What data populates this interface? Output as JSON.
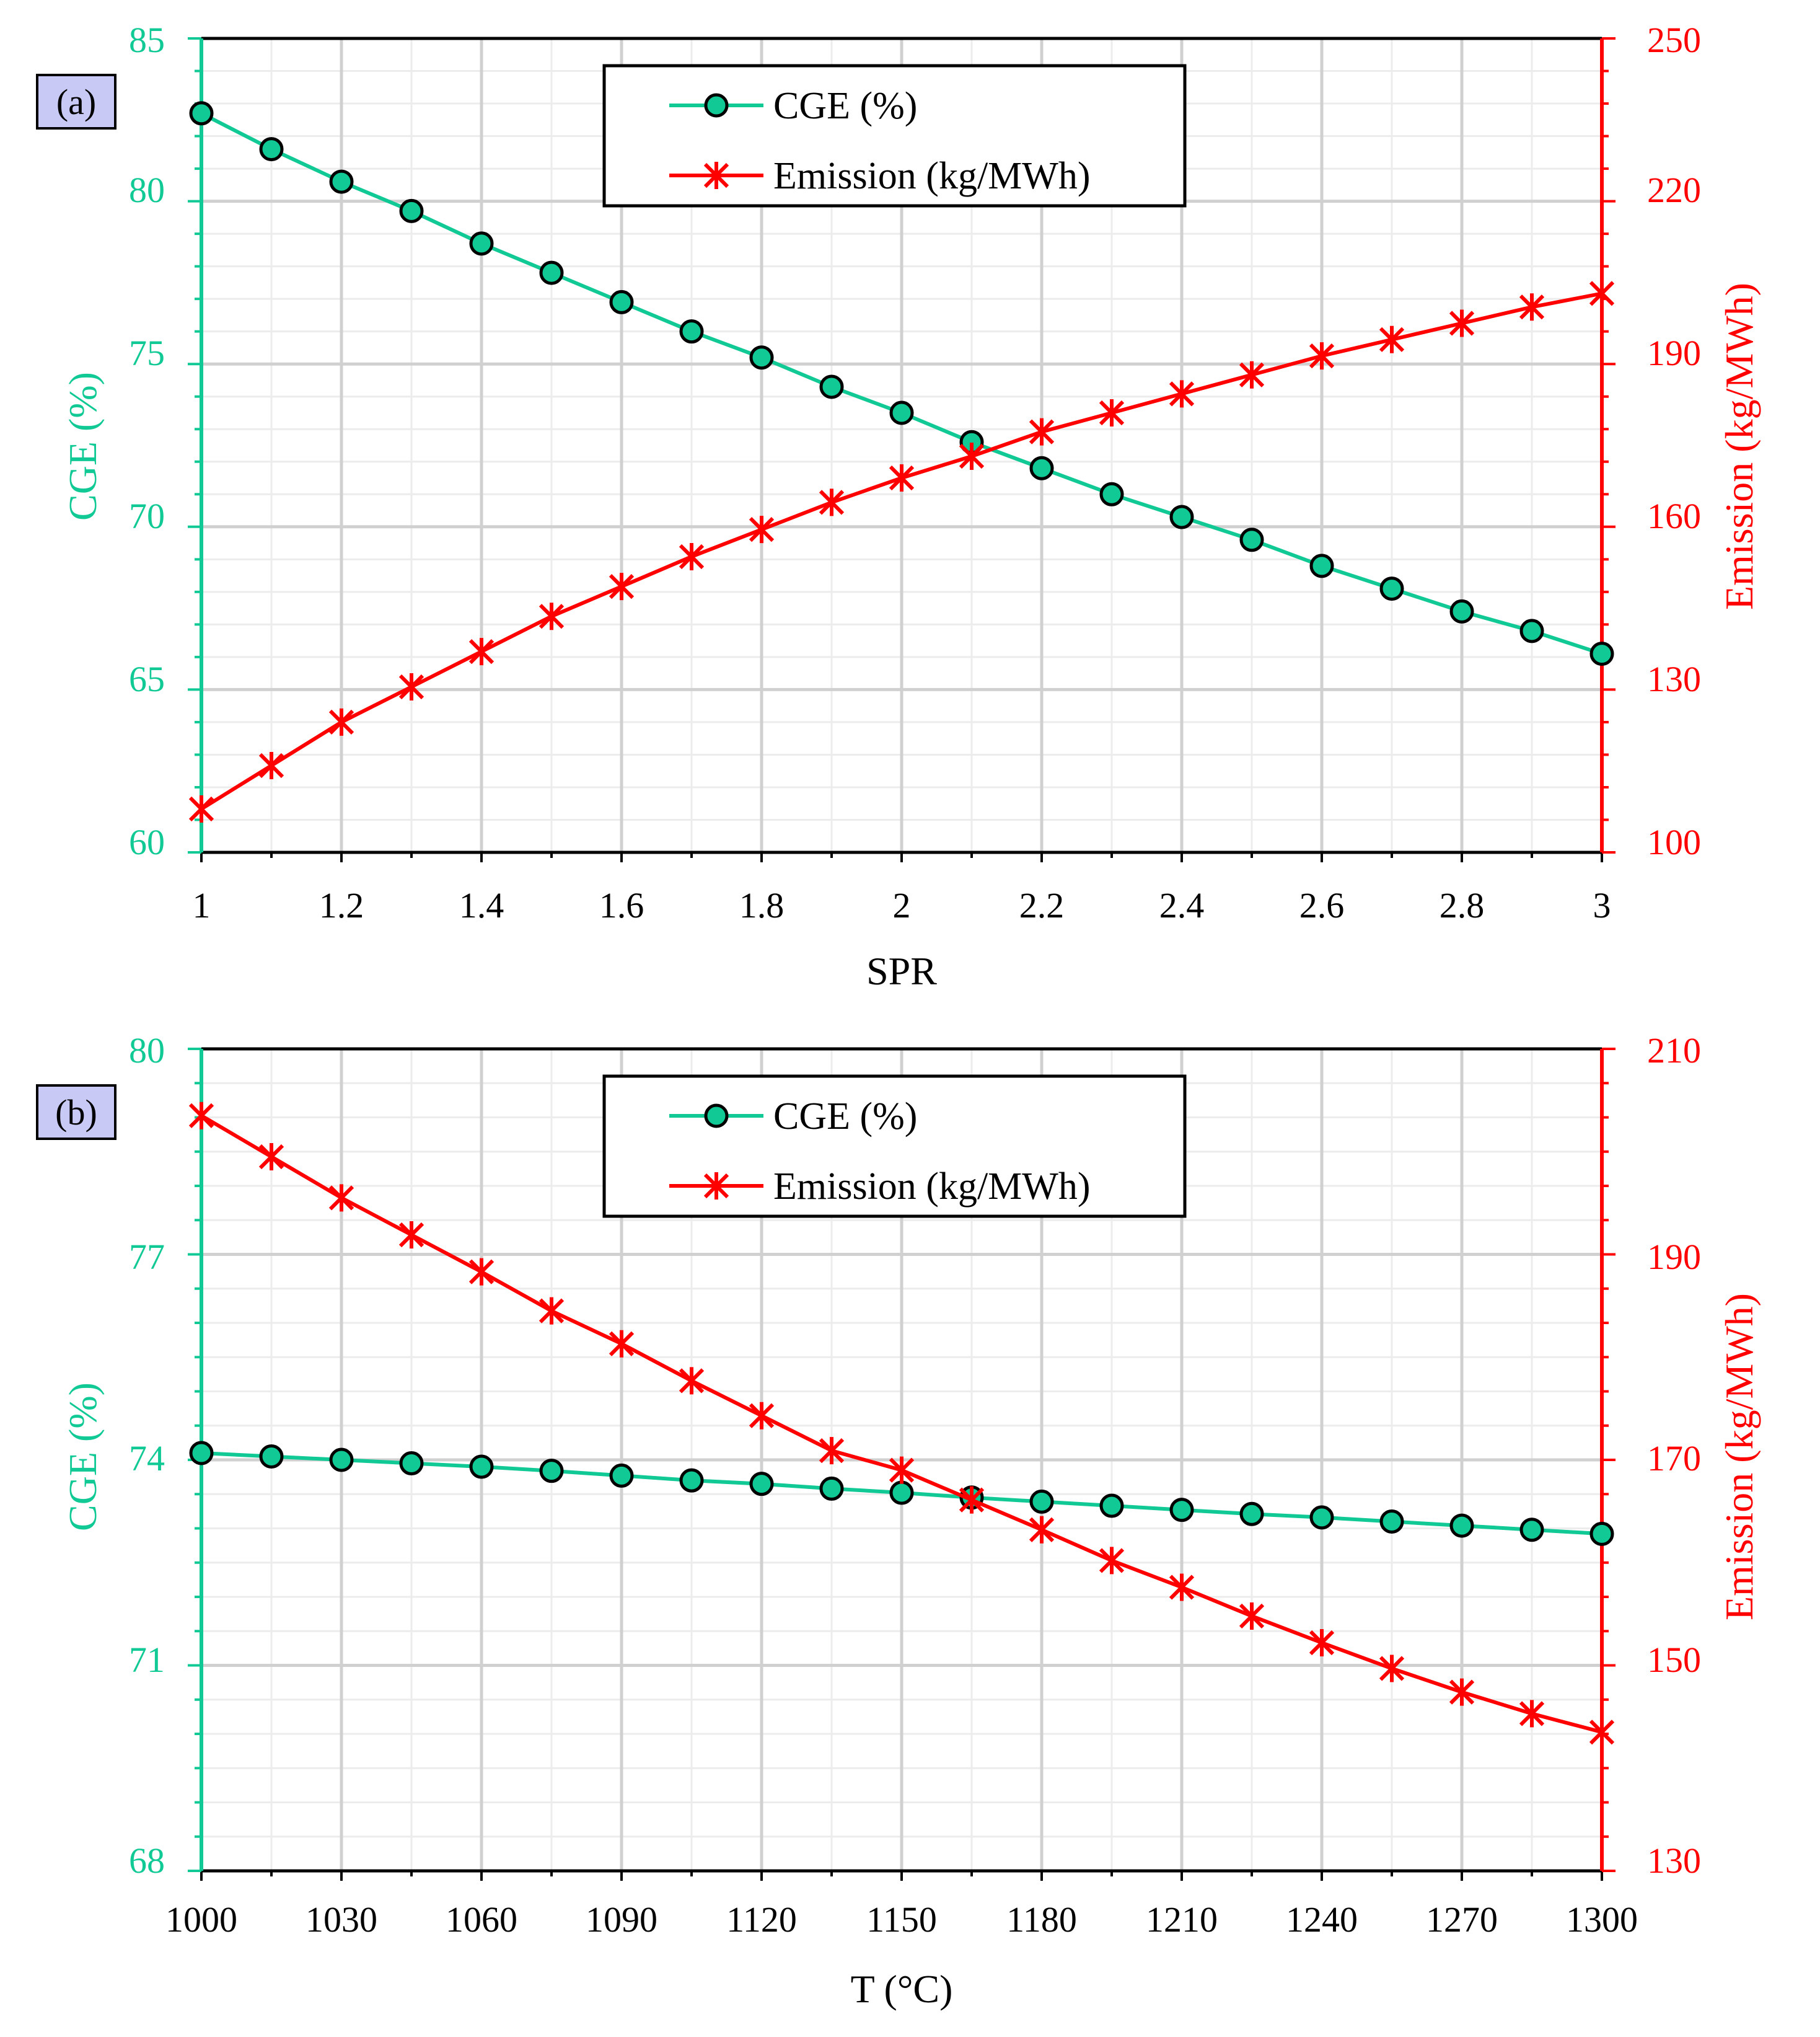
{
  "colors": {
    "cge": "#11c995",
    "emission": "#ff0000",
    "grid_major": "#d0d0d0",
    "grid_minor": "#ececec",
    "tag_fill": "#c9c9f5"
  },
  "chart_data": [
    {
      "id": "a",
      "type": "line",
      "panel_label": "(a)",
      "xlabel": "SPR",
      "ylabel_left": "CGE  (%)",
      "ylabel_right": "Emission  (kg/MWh)",
      "xlim": [
        1,
        3
      ],
      "ylim_left": [
        60,
        85
      ],
      "ylim_right": [
        100,
        250
      ],
      "x_ticks": [
        "1",
        "1.2",
        "1.4",
        "1.6",
        "1.8",
        "2",
        "2.2",
        "2.4",
        "2.6",
        "2.8",
        "3"
      ],
      "y_left_ticks": [
        "60",
        "65",
        "70",
        "75",
        "80",
        "85"
      ],
      "y_right_ticks": [
        "100",
        "130",
        "160",
        "190",
        "220",
        "250"
      ],
      "x": [
        1,
        1.1,
        1.2,
        1.3,
        1.4,
        1.5,
        1.6,
        1.7,
        1.8,
        1.9,
        2,
        2.1,
        2.2,
        2.3,
        2.4,
        2.5,
        2.6,
        2.7,
        2.8,
        2.9,
        3
      ],
      "legend": {
        "placement": "top-center",
        "entries": [
          "CGE (%)",
          "Emission (kg/MWh)"
        ]
      },
      "series": [
        {
          "name": "CGE (%)",
          "axis": "left",
          "marker": "circle",
          "values": [
            82.7,
            81.6,
            80.6,
            79.7,
            78.7,
            77.8,
            76.9,
            76.0,
            75.2,
            74.3,
            73.5,
            72.6,
            71.8,
            71.0,
            70.3,
            69.6,
            68.8,
            68.1,
            67.4,
            66.8,
            66.1
          ]
        },
        {
          "name": "Emission (kg/MWh)",
          "axis": "right",
          "marker": "asterisk",
          "values": [
            108,
            116,
            124,
            130.5,
            137,
            143.5,
            149,
            154.5,
            159.5,
            164.5,
            169,
            173,
            177.5,
            181,
            184.5,
            188,
            191.5,
            194.5,
            197.5,
            200.5,
            203
          ]
        }
      ]
    },
    {
      "id": "b",
      "type": "line",
      "panel_label": "(b)",
      "xlabel": "T (°C)",
      "ylabel_left": "CGE  (%)",
      "ylabel_right": "Emission  (kg/MWh)",
      "xlim": [
        1000,
        1300
      ],
      "ylim_left": [
        68,
        80
      ],
      "ylim_right": [
        130,
        210
      ],
      "x_ticks": [
        "1000",
        "1030",
        "1060",
        "1090",
        "1120",
        "1150",
        "1180",
        "1210",
        "1240",
        "1270",
        "1300"
      ],
      "y_left_ticks": [
        "68",
        "71",
        "74",
        "77",
        "80"
      ],
      "y_right_ticks": [
        "130",
        "150",
        "170",
        "190",
        "210"
      ],
      "x": [
        1000,
        1015,
        1030,
        1045,
        1060,
        1075,
        1090,
        1105,
        1120,
        1135,
        1150,
        1165,
        1180,
        1195,
        1210,
        1225,
        1240,
        1255,
        1270,
        1285,
        1300
      ],
      "legend": {
        "placement": "top-center",
        "entries": [
          "CGE (%)",
          "Emission (kg/MWh)"
        ]
      },
      "series": [
        {
          "name": "CGE (%)",
          "axis": "left",
          "marker": "circle",
          "values": [
            74.1,
            74.05,
            74.0,
            73.95,
            73.9,
            73.84,
            73.77,
            73.7,
            73.65,
            73.58,
            73.52,
            73.45,
            73.39,
            73.33,
            73.27,
            73.21,
            73.16,
            73.1,
            73.04,
            72.98,
            72.92
          ]
        },
        {
          "name": "Emission (kg/MWh)",
          "axis": "right",
          "marker": "asterisk",
          "values": [
            203.5,
            199.5,
            195.5,
            191.9,
            188.3,
            184.5,
            181.3,
            177.7,
            174.3,
            170.9,
            169.0,
            166.1,
            163.2,
            160.2,
            157.6,
            154.8,
            152.2,
            149.7,
            147.4,
            145.3,
            143.5
          ]
        }
      ]
    }
  ]
}
